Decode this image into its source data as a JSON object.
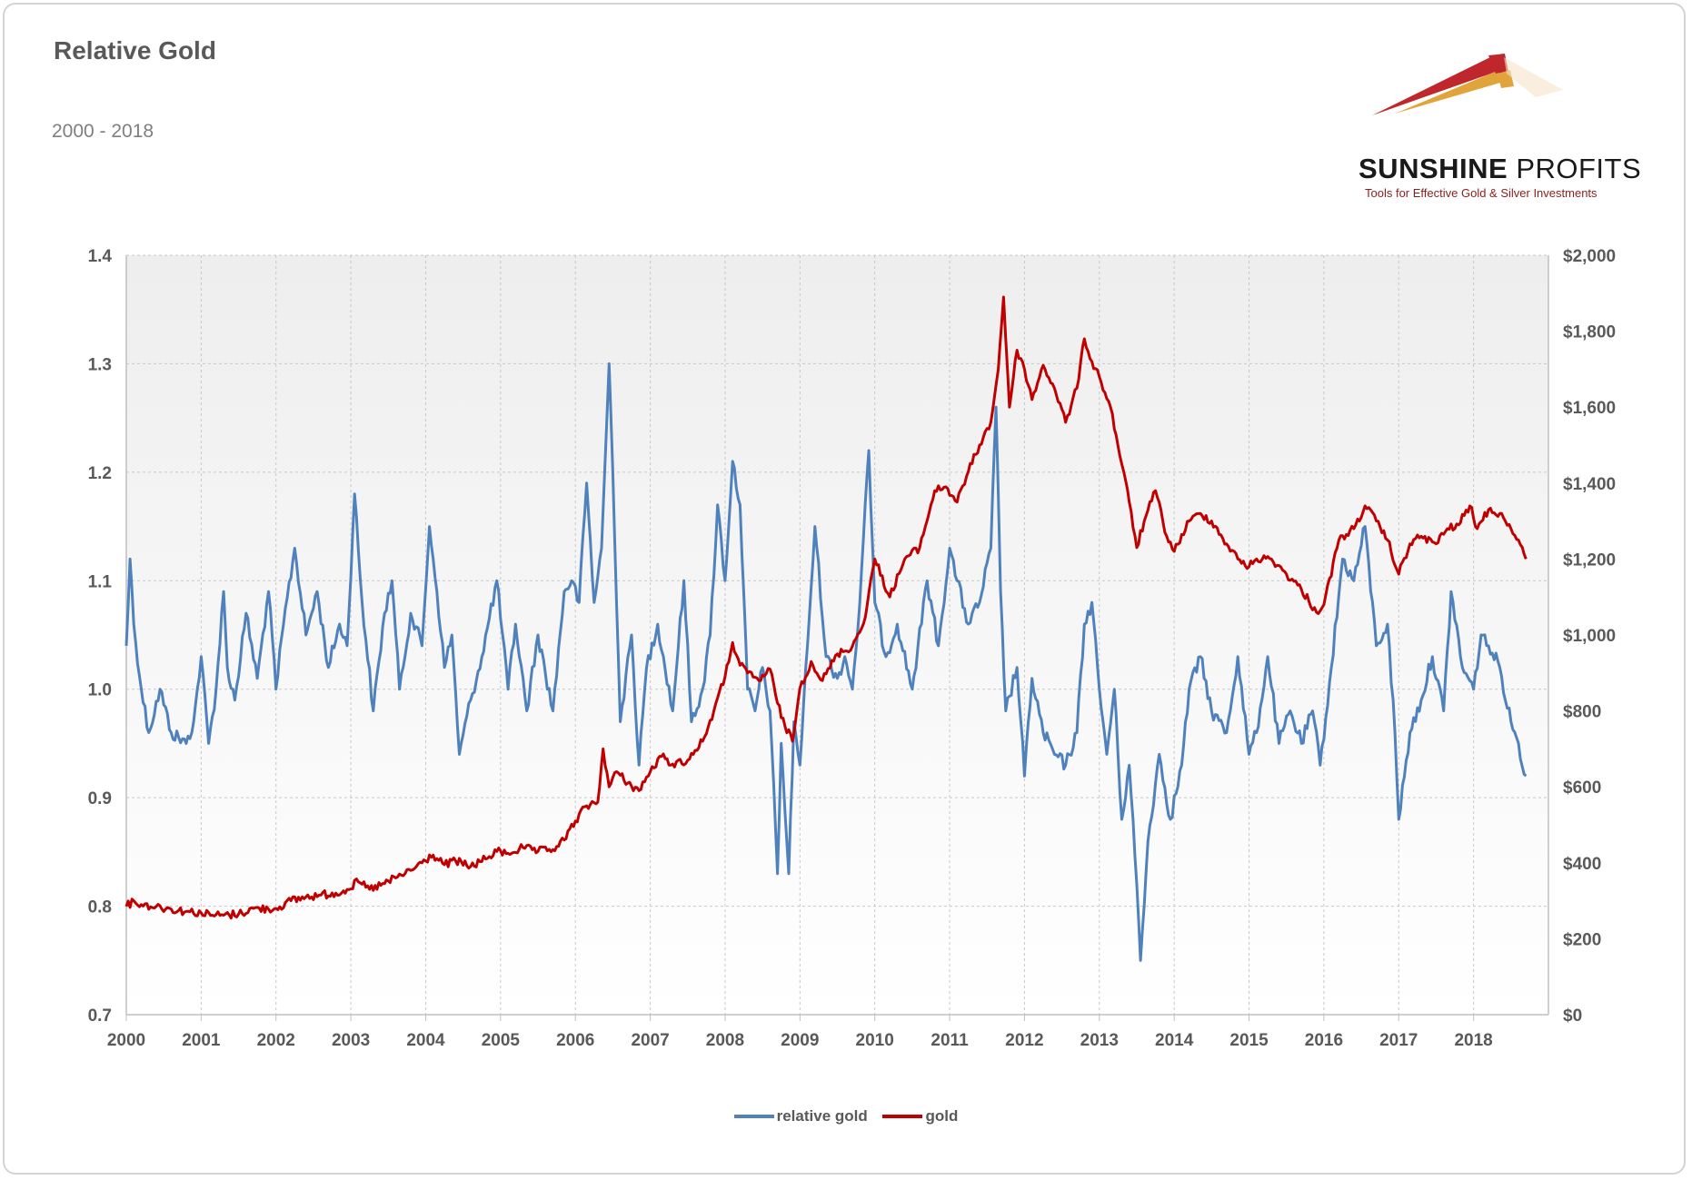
{
  "title": "Relative Gold",
  "subtitle": "2000 - 2018",
  "logo": {
    "name_bold": "SUNSHINE",
    "name_regular": " PROFITS",
    "tagline": "Tools for Effective Gold & Silver Investments"
  },
  "colors": {
    "relative_gold": "#4f81bd",
    "gold": "#c00000",
    "plot_bg_top": "#efefef",
    "grid": "#c8c8c8",
    "logo_red": "#c0272d",
    "logo_gold": "#e0a43a"
  },
  "chart_data": {
    "type": "line",
    "title": "Relative Gold",
    "subtitle": "2000 - 2018",
    "x_ticks": [
      "2000",
      "2001",
      "2002",
      "2003",
      "2004",
      "2005",
      "2006",
      "2007",
      "2008",
      "2009",
      "2010",
      "2011",
      "2012",
      "2013",
      "2014",
      "2015",
      "2016",
      "2017",
      "2018"
    ],
    "xlim": [
      2000,
      2019
    ],
    "y_left": {
      "ylim": [
        0.7,
        1.4
      ],
      "ticks": [
        "0.7",
        "0.8",
        "0.9",
        "1.0",
        "1.1",
        "1.2",
        "1.3",
        "1.4"
      ]
    },
    "y_right": {
      "ylim": [
        0,
        2000
      ],
      "ticks": [
        "$0",
        "$200",
        "$400",
        "$600",
        "$800",
        "$1,000",
        "$1,200",
        "$1,400",
        "$1,600",
        "$1,800",
        "$2,000"
      ]
    },
    "grid": true,
    "legend": "bottom-center",
    "series": [
      {
        "name": "relative gold",
        "axis": "left",
        "x": [
          2000.0,
          2000.05,
          2000.1,
          2000.2,
          2000.3,
          2000.45,
          2000.6,
          2000.8,
          2000.9,
          2001.0,
          2001.1,
          2001.2,
          2001.3,
          2001.35,
          2001.45,
          2001.6,
          2001.75,
          2001.9,
          2002.0,
          2002.1,
          2002.25,
          2002.4,
          2002.55,
          2002.7,
          2002.85,
          2002.95,
          2003.05,
          2003.15,
          2003.3,
          2003.45,
          2003.55,
          2003.65,
          2003.8,
          2003.95,
          2004.05,
          2004.15,
          2004.25,
          2004.35,
          2004.45,
          2004.6,
          2004.75,
          2004.95,
          2005.1,
          2005.2,
          2005.35,
          2005.5,
          2005.7,
          2005.85,
          2005.95,
          2006.05,
          2006.15,
          2006.25,
          2006.35,
          2006.45,
          2006.5,
          2006.6,
          2006.75,
          2006.85,
          2006.95,
          2007.1,
          2007.3,
          2007.45,
          2007.55,
          2007.7,
          2007.8,
          2007.9,
          2008.0,
          2008.1,
          2008.2,
          2008.3,
          2008.4,
          2008.5,
          2008.6,
          2008.7,
          2008.75,
          2008.85,
          2008.92,
          2009.0,
          2009.1,
          2009.2,
          2009.35,
          2009.5,
          2009.6,
          2009.7,
          2009.8,
          2009.92,
          2010.0,
          2010.15,
          2010.3,
          2010.5,
          2010.7,
          2010.85,
          2011.0,
          2011.1,
          2011.25,
          2011.4,
          2011.55,
          2011.62,
          2011.68,
          2011.75,
          2011.9,
          2012.0,
          2012.1,
          2012.25,
          2012.4,
          2012.55,
          2012.7,
          2012.8,
          2012.9,
          2013.0,
          2013.1,
          2013.2,
          2013.3,
          2013.4,
          2013.5,
          2013.55,
          2013.65,
          2013.8,
          2013.95,
          2014.1,
          2014.2,
          2014.35,
          2014.5,
          2014.7,
          2014.85,
          2015.0,
          2015.1,
          2015.25,
          2015.4,
          2015.55,
          2015.7,
          2015.85,
          2015.95,
          2016.1,
          2016.25,
          2016.4,
          2016.55,
          2016.7,
          2016.85,
          2016.95,
          2017.0,
          2017.15,
          2017.3,
          2017.45,
          2017.6,
          2017.7,
          2017.85,
          2018.0,
          2018.1,
          2018.2,
          2018.35,
          2018.5,
          2018.6,
          2018.7
        ],
        "values": [
          1.04,
          1.12,
          1.06,
          1.0,
          0.96,
          1.0,
          0.96,
          0.95,
          0.97,
          1.03,
          0.95,
          1.0,
          1.09,
          1.02,
          0.99,
          1.07,
          1.01,
          1.09,
          1.0,
          1.06,
          1.13,
          1.05,
          1.09,
          1.02,
          1.06,
          1.04,
          1.18,
          1.08,
          0.98,
          1.07,
          1.1,
          1.0,
          1.07,
          1.04,
          1.15,
          1.09,
          1.02,
          1.05,
          0.94,
          0.99,
          1.03,
          1.1,
          1.0,
          1.06,
          0.98,
          1.05,
          0.98,
          1.09,
          1.1,
          1.08,
          1.19,
          1.08,
          1.13,
          1.3,
          1.2,
          0.97,
          1.05,
          0.93,
          1.02,
          1.06,
          0.98,
          1.1,
          0.97,
          1.0,
          1.05,
          1.17,
          1.1,
          1.21,
          1.17,
          1.0,
          0.98,
          1.02,
          0.98,
          0.83,
          0.95,
          0.83,
          0.97,
          0.93,
          1.04,
          1.15,
          1.03,
          1.01,
          1.03,
          1.0,
          1.08,
          1.22,
          1.08,
          1.03,
          1.06,
          1.0,
          1.1,
          1.04,
          1.13,
          1.1,
          1.06,
          1.08,
          1.13,
          1.26,
          1.09,
          0.98,
          1.02,
          0.92,
          1.01,
          0.96,
          0.94,
          0.93,
          0.96,
          1.06,
          1.08,
          1.0,
          0.94,
          1.0,
          0.88,
          0.93,
          0.82,
          0.75,
          0.86,
          0.94,
          0.88,
          0.93,
          1.0,
          1.03,
          0.98,
          0.96,
          1.03,
          0.94,
          0.96,
          1.03,
          0.95,
          0.98,
          0.95,
          0.98,
          0.93,
          1.02,
          1.12,
          1.1,
          1.15,
          1.04,
          1.06,
          0.96,
          0.88,
          0.96,
          0.99,
          1.03,
          0.98,
          1.09,
          1.02,
          1.0,
          1.05,
          1.04,
          1.02,
          0.97,
          0.95,
          0.92
        ],
        "color": "#4f81bd"
      },
      {
        "name": "gold",
        "axis": "right",
        "x": [
          2000.0,
          2000.1,
          2000.2,
          2000.4,
          2000.6,
          2000.8,
          2001.0,
          2001.15,
          2001.3,
          2001.5,
          2001.7,
          2001.9,
          2002.0,
          2002.2,
          2002.4,
          2002.6,
          2002.8,
          2002.95,
          2003.1,
          2003.25,
          2003.45,
          2003.6,
          2003.8,
          2003.95,
          2004.1,
          2004.25,
          2004.4,
          2004.6,
          2004.8,
          2004.95,
          2005.1,
          2005.3,
          2005.5,
          2005.7,
          2005.85,
          2006.0,
          2006.15,
          2006.3,
          2006.37,
          2006.45,
          2006.55,
          2006.7,
          2006.85,
          2007.0,
          2007.15,
          2007.3,
          2007.5,
          2007.7,
          2007.85,
          2008.0,
          2008.1,
          2008.2,
          2008.3,
          2008.45,
          2008.6,
          2008.7,
          2008.8,
          2008.9,
          2009.0,
          2009.15,
          2009.3,
          2009.5,
          2009.7,
          2009.85,
          2010.0,
          2010.2,
          2010.4,
          2010.6,
          2010.8,
          2010.95,
          2011.1,
          2011.25,
          2011.4,
          2011.55,
          2011.65,
          2011.72,
          2011.8,
          2011.9,
          2012.0,
          2012.1,
          2012.25,
          2012.4,
          2012.55,
          2012.7,
          2012.8,
          2012.9,
          2013.0,
          2013.15,
          2013.3,
          2013.4,
          2013.5,
          2013.6,
          2013.75,
          2013.9,
          2014.0,
          2014.2,
          2014.35,
          2014.5,
          2014.7,
          2014.85,
          2015.0,
          2015.1,
          2015.3,
          2015.5,
          2015.7,
          2015.9,
          2016.0,
          2016.2,
          2016.4,
          2016.55,
          2016.7,
          2016.85,
          2017.0,
          2017.15,
          2017.3,
          2017.5,
          2017.65,
          2017.8,
          2017.95,
          2018.05,
          2018.2,
          2018.35,
          2018.5,
          2018.6,
          2018.7
        ],
        "values": [
          285,
          300,
          290,
          285,
          278,
          272,
          268,
          262,
          262,
          265,
          280,
          278,
          280,
          300,
          310,
          315,
          320,
          330,
          350,
          330,
          345,
          360,
          380,
          400,
          420,
          395,
          405,
          390,
          410,
          430,
          425,
          440,
          430,
          435,
          460,
          510,
          550,
          560,
          700,
          600,
          640,
          610,
          590,
          640,
          680,
          660,
          670,
          720,
          800,
          890,
          980,
          920,
          900,
          880,
          910,
          820,
          760,
          720,
          860,
          930,
          880,
          950,
          970,
          1030,
          1200,
          1100,
          1200,
          1230,
          1380,
          1390,
          1350,
          1430,
          1500,
          1560,
          1700,
          1890,
          1600,
          1750,
          1700,
          1620,
          1710,
          1650,
          1560,
          1650,
          1780,
          1720,
          1680,
          1600,
          1450,
          1350,
          1230,
          1300,
          1380,
          1260,
          1220,
          1300,
          1320,
          1300,
          1240,
          1200,
          1180,
          1200,
          1200,
          1160,
          1120,
          1060,
          1080,
          1250,
          1280,
          1340,
          1300,
          1250,
          1160,
          1240,
          1260,
          1240,
          1280,
          1290,
          1340,
          1280,
          1330,
          1320,
          1280,
          1250,
          1200
        ]
      }
    ]
  }
}
